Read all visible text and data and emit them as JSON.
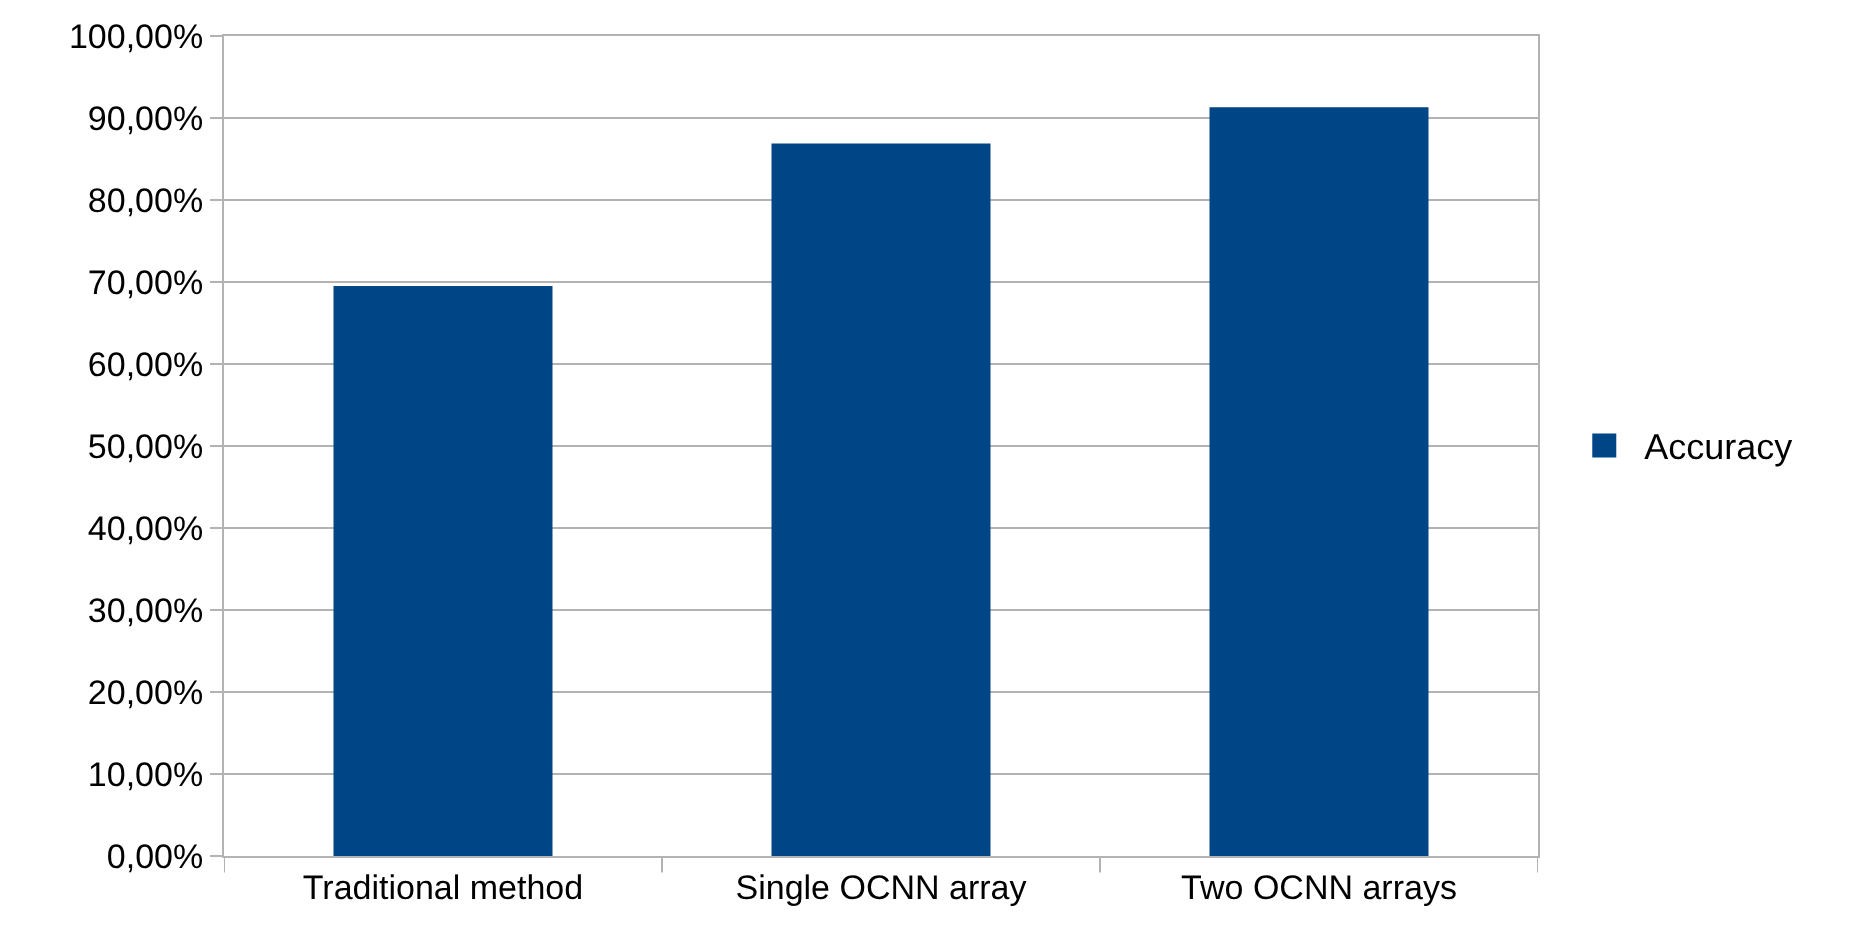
{
  "chart_data": {
    "type": "bar",
    "categories": [
      "Traditional method",
      "Single OCNN array",
      "Two OCNN arrays"
    ],
    "series": [
      {
        "name": "Accuracy",
        "color": "#004586",
        "values": [
          69.5,
          86.9,
          91.3
        ]
      }
    ],
    "ylim": [
      0,
      100
    ],
    "yticks": [
      {
        "value": 0,
        "label": "0,00%"
      },
      {
        "value": 10,
        "label": "10,00%"
      },
      {
        "value": 20,
        "label": "20,00%"
      },
      {
        "value": 30,
        "label": "30,00%"
      },
      {
        "value": 40,
        "label": "40,00%"
      },
      {
        "value": 50,
        "label": "50,00%"
      },
      {
        "value": 60,
        "label": "60,00%"
      },
      {
        "value": 70,
        "label": "70,00%"
      },
      {
        "value": 80,
        "label": "80,00%"
      },
      {
        "value": 90,
        "label": "90,00%"
      },
      {
        "value": 100,
        "label": "100,00%"
      }
    ],
    "grid": "y",
    "legend": "right"
  }
}
